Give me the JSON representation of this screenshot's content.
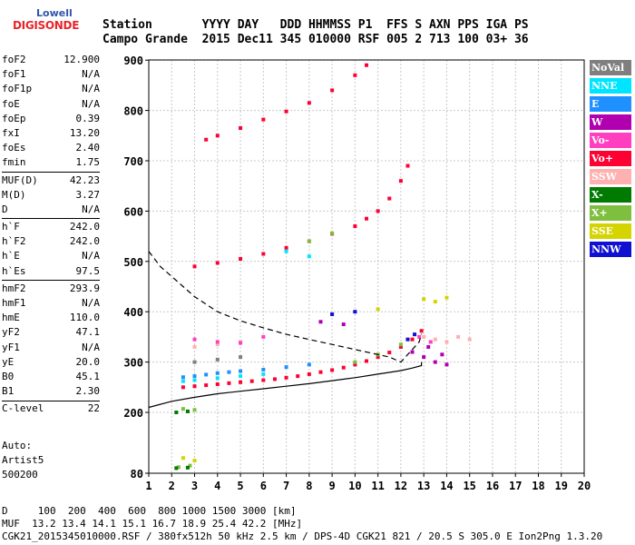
{
  "logo": {
    "line1": "Lowell",
    "line2": "DIGISONDE"
  },
  "header": {
    "line1": "Station       YYYY DAY   DDD HHMMSS P1  FFS S AXN PPS IGA PS",
    "line2": "Campo Grande  2015 Dec11 345 010000 RSF 005 2 713 100 03+ 36"
  },
  "params": [
    {
      "k": "foF2",
      "v": "12.900"
    },
    {
      "k": "foF1",
      "v": "N/A"
    },
    {
      "k": "foF1p",
      "v": "N/A"
    },
    {
      "k": "foE",
      "v": "N/A"
    },
    {
      "k": "foEp",
      "v": "0.39"
    },
    {
      "k": "fxI",
      "v": "13.20"
    },
    {
      "k": "foEs",
      "v": "2.40"
    },
    {
      "k": "fmin",
      "v": "1.75"
    },
    {
      "k": "MUF(D)",
      "v": "42.23"
    },
    {
      "k": "M(D)",
      "v": "3.27"
    },
    {
      "k": "D",
      "v": "N/A"
    },
    {
      "k": "h`F",
      "v": "242.0"
    },
    {
      "k": "h`F2",
      "v": "242.0"
    },
    {
      "k": "h`E",
      "v": "N/A"
    },
    {
      "k": "h`Es",
      "v": "97.5"
    },
    {
      "k": "hmF2",
      "v": "293.9"
    },
    {
      "k": "hmF1",
      "v": "N/A"
    },
    {
      "k": "hmE",
      "v": "110.0"
    },
    {
      "k": "yF2",
      "v": "47.1"
    },
    {
      "k": "yF1",
      "v": "N/A"
    },
    {
      "k": "yE",
      "v": "20.0"
    },
    {
      "k": "B0",
      "v": "45.1"
    },
    {
      "k": "B1",
      "v": "2.30"
    },
    {
      "k": "C-level",
      "v": "22"
    }
  ],
  "auto": {
    "line1": "Auto:",
    "line2": "Artist5",
    "line3": "500200"
  },
  "legend": [
    {
      "label": "NoVal",
      "color": "#7f7f7f"
    },
    {
      "label": "NNE",
      "color": "#00e5ff"
    },
    {
      "label": "E",
      "color": "#1e90ff"
    },
    {
      "label": "W",
      "color": "#b000b0"
    },
    {
      "label": "Vo-",
      "color": "#ff3fc0"
    },
    {
      "label": "Vo+",
      "color": "#ff0033"
    },
    {
      "label": "SSW",
      "color": "#ffb0b0"
    },
    {
      "label": "X-",
      "color": "#007a00"
    },
    {
      "label": "X+",
      "color": "#7fbf40"
    },
    {
      "label": "SSE",
      "color": "#d4d400"
    },
    {
      "label": "NNW",
      "color": "#1010d0"
    }
  ],
  "footer": {
    "line1": "D     100  200  400  600  800 1000 1500 3000 [km]",
    "line2": "MUF  13.2 13.4 14.1 15.1 16.7 18.9 25.4 42.2 [MHz]",
    "line3": "CGK21_2015345010000.RSF / 380fx512h 50 kHz 2.5 km / DPS-4D CGK21 821 / 20.5 S 305.0 E Ion2Png 1.3.20"
  },
  "chart_data": {
    "type": "scatter",
    "title": "",
    "xlabel": "",
    "ylabel": "",
    "xlim": [
      1,
      20
    ],
    "ylim": [
      80,
      900
    ],
    "xticks": [
      1,
      2,
      3,
      4,
      5,
      6,
      7,
      8,
      9,
      10,
      11,
      12,
      13,
      14,
      15,
      16,
      17,
      18,
      19,
      20
    ],
    "yticks": [
      80,
      200,
      300,
      400,
      500,
      600,
      700,
      800,
      900
    ],
    "grid": true,
    "series": [
      {
        "name": "Vo+",
        "color": "#ff0033",
        "points": [
          [
            2.5,
            250
          ],
          [
            3,
            252
          ],
          [
            3.5,
            254
          ],
          [
            4,
            256
          ],
          [
            4.5,
            258
          ],
          [
            5,
            260
          ],
          [
            5.5,
            262
          ],
          [
            6,
            264
          ],
          [
            6.5,
            266
          ],
          [
            7,
            269
          ],
          [
            7.5,
            272
          ],
          [
            8,
            276
          ],
          [
            8.5,
            280
          ],
          [
            9,
            284
          ],
          [
            9.5,
            289
          ],
          [
            10,
            295
          ],
          [
            10.5,
            302
          ],
          [
            11,
            310
          ],
          [
            11.5,
            319
          ],
          [
            12,
            330
          ],
          [
            12.5,
            345
          ],
          [
            12.9,
            362
          ],
          [
            3,
            490
          ],
          [
            4,
            497
          ],
          [
            5,
            505
          ],
          [
            6,
            515
          ],
          [
            7,
            527
          ],
          [
            8,
            540
          ],
          [
            9,
            555
          ],
          [
            10,
            570
          ],
          [
            10.5,
            585
          ],
          [
            11,
            600
          ],
          [
            11.5,
            625
          ],
          [
            12,
            660
          ],
          [
            12.3,
            690
          ],
          [
            3.5,
            742
          ],
          [
            4,
            750
          ],
          [
            5,
            765
          ],
          [
            6,
            782
          ],
          [
            7,
            798
          ],
          [
            8,
            815
          ],
          [
            9,
            840
          ],
          [
            10,
            870
          ],
          [
            10.5,
            890
          ]
        ]
      },
      {
        "name": "E",
        "color": "#1e90ff",
        "points": [
          [
            2.5,
            270
          ],
          [
            3,
            272
          ],
          [
            3.5,
            275
          ],
          [
            4,
            278
          ],
          [
            4.5,
            280
          ],
          [
            5,
            282
          ],
          [
            6,
            285
          ],
          [
            7,
            290
          ],
          [
            8,
            295
          ]
        ]
      },
      {
        "name": "NNE",
        "color": "#00e5ff",
        "points": [
          [
            2.5,
            262
          ],
          [
            3,
            264
          ],
          [
            4,
            268
          ],
          [
            5,
            272
          ],
          [
            6,
            276
          ],
          [
            7,
            520
          ],
          [
            8,
            510
          ]
        ]
      },
      {
        "name": "W",
        "color": "#b000b0",
        "points": [
          [
            12.5,
            320
          ],
          [
            13,
            310
          ],
          [
            13.5,
            300
          ],
          [
            14,
            295
          ],
          [
            13.2,
            330
          ],
          [
            13.8,
            315
          ],
          [
            8.5,
            380
          ],
          [
            9.5,
            375
          ]
        ]
      },
      {
        "name": "SSW",
        "color": "#ffb0b0",
        "points": [
          [
            13,
            350
          ],
          [
            13.5,
            345
          ],
          [
            14,
            340
          ],
          [
            14.5,
            350
          ],
          [
            15,
            345
          ],
          [
            3,
            330
          ],
          [
            4,
            335
          ],
          [
            5,
            340
          ]
        ]
      },
      {
        "name": "Vo-",
        "color": "#ff3fc0",
        "points": [
          [
            3,
            345
          ],
          [
            4,
            340
          ],
          [
            5,
            338
          ],
          [
            6,
            350
          ],
          [
            12.8,
            350
          ],
          [
            13.3,
            340
          ]
        ]
      },
      {
        "name": "X+",
        "color": "#7fbf40",
        "points": [
          [
            2.5,
            207
          ],
          [
            3,
            205
          ],
          [
            2.3,
            92
          ],
          [
            2.8,
            95
          ],
          [
            10,
            300
          ],
          [
            11,
            315
          ],
          [
            12,
            335
          ],
          [
            8,
            540
          ],
          [
            9,
            556
          ]
        ]
      },
      {
        "name": "X-",
        "color": "#007a00",
        "points": [
          [
            2.2,
            200
          ],
          [
            2.7,
            202
          ],
          [
            2.2,
            90
          ],
          [
            2.7,
            91
          ]
        ]
      },
      {
        "name": "SSE",
        "color": "#d4d400",
        "points": [
          [
            13,
            425
          ],
          [
            13.5,
            420
          ],
          [
            14,
            428
          ],
          [
            11,
            405
          ],
          [
            2.5,
            110
          ],
          [
            3,
            105
          ]
        ]
      },
      {
        "name": "NNW",
        "color": "#1010d0",
        "points": [
          [
            12.3,
            345
          ],
          [
            12.6,
            355
          ],
          [
            9,
            395
          ],
          [
            10,
            400
          ]
        ]
      },
      {
        "name": "NoVal",
        "color": "#7f7f7f",
        "points": [
          [
            3,
            300
          ],
          [
            4,
            305
          ],
          [
            5,
            310
          ]
        ]
      }
    ],
    "lines": [
      {
        "style": "solid",
        "color": "#000000",
        "points": [
          [
            1,
            210
          ],
          [
            2,
            222
          ],
          [
            3,
            230
          ],
          [
            4,
            237
          ],
          [
            5,
            242
          ],
          [
            6,
            247
          ],
          [
            7,
            252
          ],
          [
            8,
            257
          ],
          [
            9,
            263
          ],
          [
            10,
            269
          ],
          [
            11,
            276
          ],
          [
            12,
            283
          ],
          [
            12.5,
            288
          ],
          [
            12.9,
            293
          ],
          [
            12.9,
            300
          ]
        ]
      },
      {
        "style": "dashed",
        "color": "#000000",
        "points": [
          [
            1,
            520
          ],
          [
            1.5,
            490
          ],
          [
            2,
            470
          ],
          [
            2.5,
            450
          ],
          [
            3,
            430
          ],
          [
            4,
            400
          ],
          [
            5,
            382
          ],
          [
            6,
            368
          ],
          [
            7,
            355
          ],
          [
            8,
            345
          ],
          [
            9,
            335
          ],
          [
            10,
            325
          ],
          [
            11,
            315
          ],
          [
            11.5,
            310
          ],
          [
            12,
            300
          ],
          [
            12.5,
            325
          ],
          [
            12.8,
            340
          ],
          [
            12.9,
            356
          ]
        ]
      }
    ]
  }
}
